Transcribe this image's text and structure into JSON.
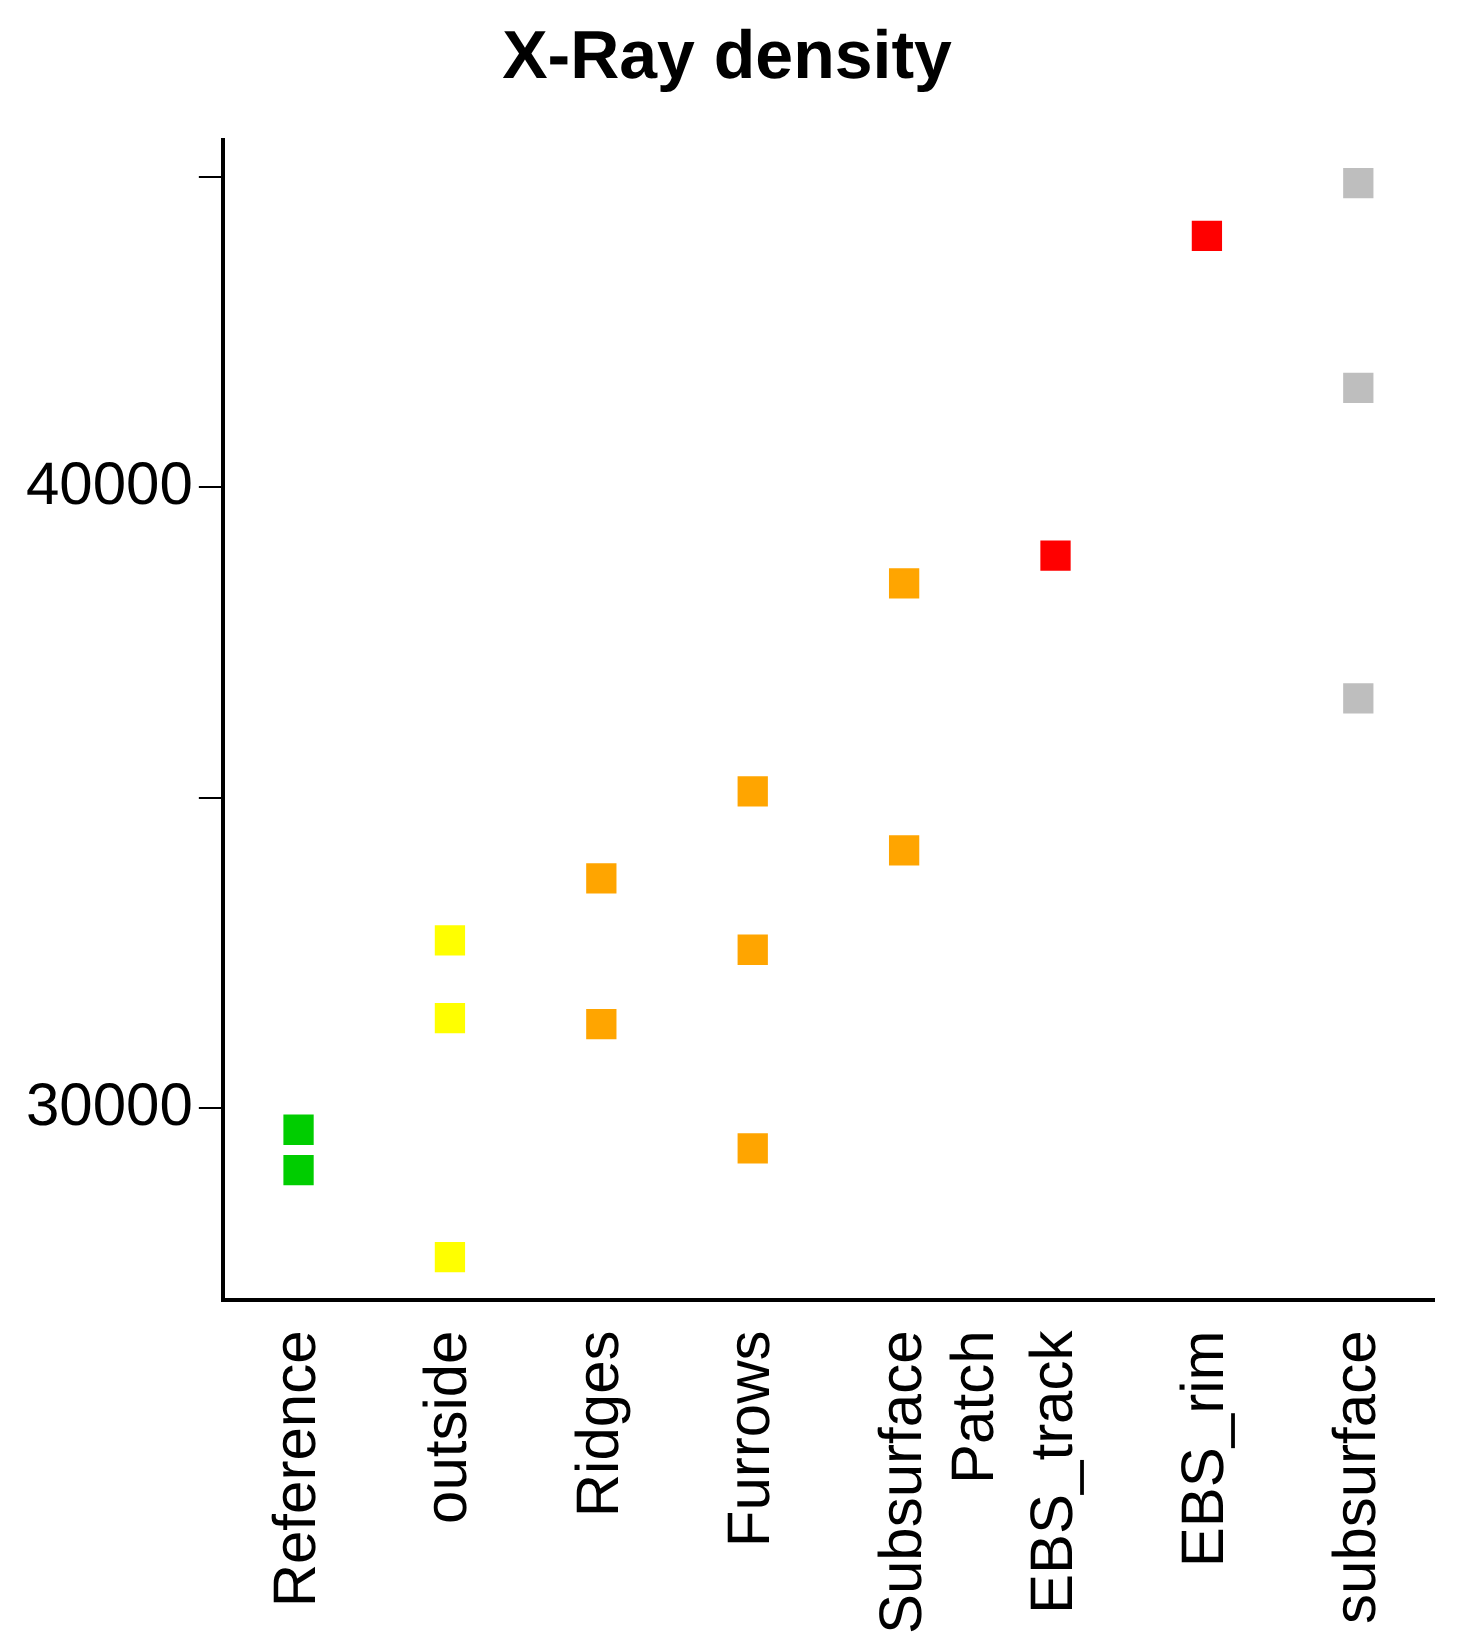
{
  "chart_data": {
    "type": "scatter",
    "title": "X-Ray density",
    "categories": [
      "Reference",
      "outside",
      "Ridges",
      "Furrows",
      "Subsurface\nPatch",
      "EBS_track",
      "EBS_rim",
      "subsurface"
    ],
    "series": [
      {
        "type": "scatter",
        "x": [
          "Reference",
          "Reference",
          "outside",
          "outside",
          "outside",
          "Ridges",
          "Ridges",
          "Furrows",
          "Furrows",
          "Furrows",
          "Subsurface\nPatch",
          "Subsurface\nPatch",
          "EBS_track",
          "EBS_rim",
          "subsurface",
          "subsurface",
          "subsurface"
        ],
        "values": [
          29650,
          29000,
          32700,
          31450,
          27600,
          33700,
          31350,
          35100,
          32550,
          29350,
          38450,
          34150,
          38900,
          44050,
          44900,
          41600,
          36600
        ],
        "colors": [
          "#00cd00",
          "#00cd00",
          "#ffff00",
          "#ffff00",
          "#ffff00",
          "#ffa500",
          "#ffa500",
          "#ffa500",
          "#ffa500",
          "#ffa500",
          "#ffa500",
          "#ffa500",
          "#ff0000",
          "#ff0000",
          "#bebebe",
          "#bebebe",
          "#bebebe"
        ]
      }
    ],
    "ylim": [
      26900,
      45600
    ],
    "yticks": [
      30000,
      {
        "value": 35000,
        "label": null
      },
      40000,
      {
        "value": 45000,
        "label": null
      }
    ],
    "grid": false,
    "legend": false,
    "marker": "square"
  }
}
